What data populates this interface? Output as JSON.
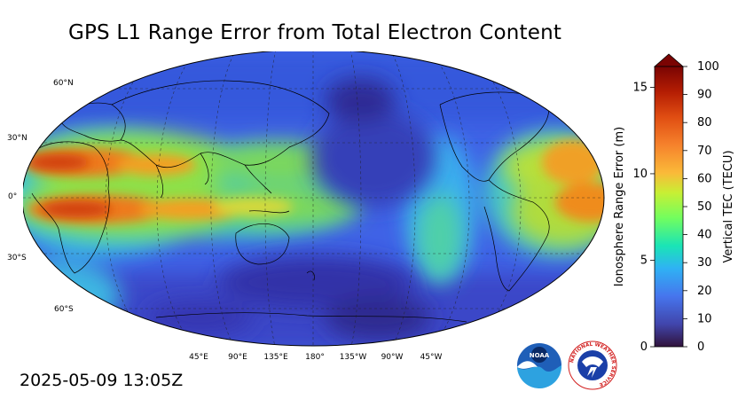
{
  "title": "GPS L1 Range Error from Total Electron Content",
  "timestamp": "2025-05-09 13:05Z",
  "map": {
    "lat_labels": [
      "60°N",
      "30°N",
      "0°",
      "30°S",
      "60°S"
    ],
    "lon_labels": [
      "45°E",
      "90°E",
      "135°E",
      "180°",
      "135°W",
      "90°W",
      "45°W"
    ],
    "colors": {
      "ocean_low": "#3b4fd6",
      "ocean_mid": "#2f7df0",
      "band_green": "#57d85a",
      "band_yellow": "#d8e030",
      "band_orange": "#f08a1e",
      "band_red": "#d84a12",
      "hole_dark": "#3a2e9a"
    }
  },
  "colorbar": {
    "left_label": "Ionosphere Range Error (m)",
    "right_label": "Vertical TEC (TECU)",
    "left_ticks": [
      "0",
      "5",
      "10",
      "15"
    ],
    "right_ticks": [
      "0",
      "10",
      "20",
      "30",
      "40",
      "50",
      "60",
      "70",
      "80",
      "90",
      "100"
    ],
    "range_tecu": [
      0,
      100
    ],
    "range_m": [
      0,
      16.2
    ],
    "extend": "max"
  },
  "logos": {
    "noaa": "NOAA",
    "nws": "NATIONAL WEATHER SERVICE"
  }
}
